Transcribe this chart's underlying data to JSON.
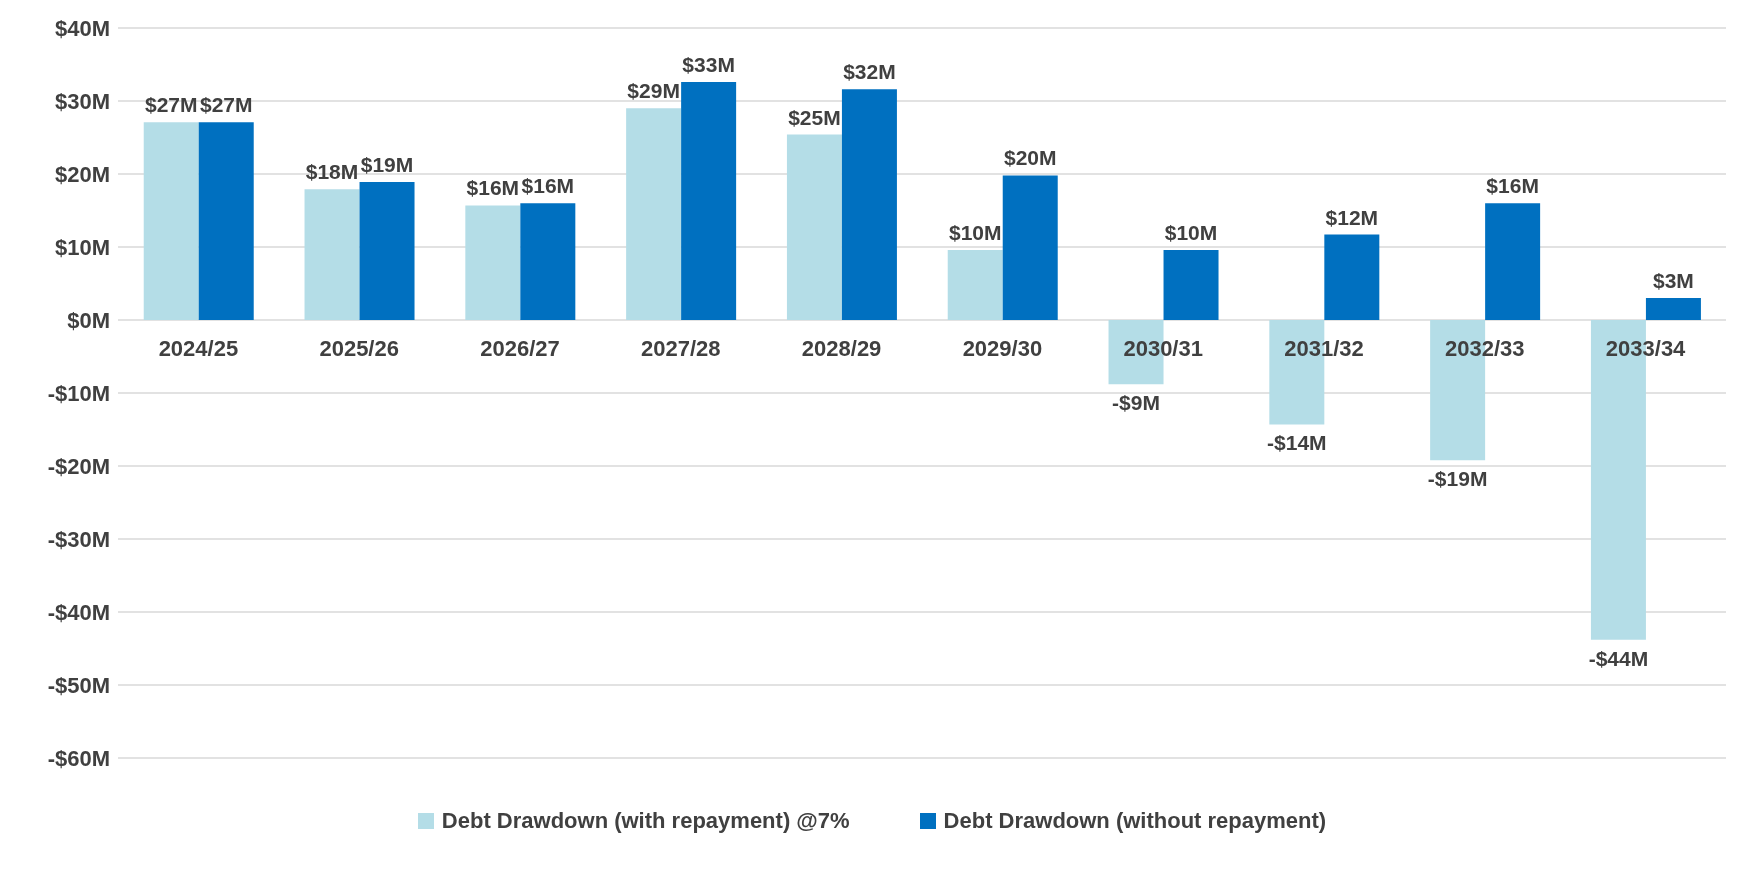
{
  "chart_data": {
    "type": "bar",
    "categories": [
      "2024/25",
      "2025/26",
      "2026/27",
      "2027/28",
      "2028/29",
      "2029/30",
      "2030/31",
      "2031/32",
      "2032/33",
      "2033/34"
    ],
    "series": [
      {
        "name": "Debt Drawdown (with repayment) @7%",
        "color": "#b4dde7",
        "values": [
          27.1,
          17.9,
          15.7,
          29,
          25.4,
          9.6,
          -8.8,
          -14.3,
          -19.2,
          -43.8
        ],
        "value_labels": [
          "$27M",
          "$18M",
          "$16M",
          "$29M",
          "$25M",
          "$10M",
          "-$9M",
          "-$14M",
          "-$19M",
          "-$44M"
        ]
      },
      {
        "name": "Debt Drawdown (without repayment)",
        "color": "#0070c0",
        "values": [
          27.1,
          18.9,
          16,
          32.6,
          31.6,
          19.8,
          9.6,
          11.7,
          16,
          3
        ],
        "value_labels": [
          "$27M",
          "$19M",
          "$16M",
          "$33M",
          "$32M",
          "$20M",
          "$10M",
          "$12M",
          "$16M",
          "$3M"
        ]
      }
    ],
    "ylim": [
      -60,
      40
    ],
    "yticks": [
      {
        "value": -60,
        "label": "-$60M"
      },
      {
        "value": -50,
        "label": "-$50M"
      },
      {
        "value": -40,
        "label": "-$40M"
      },
      {
        "value": -30,
        "label": "-$30M"
      },
      {
        "value": -20,
        "label": "-$20M"
      },
      {
        "value": -10,
        "label": "-$10M"
      },
      {
        "value": 0,
        "label": "$0M"
      },
      {
        "value": 10,
        "label": "$10M"
      },
      {
        "value": 20,
        "label": "$20M"
      },
      {
        "value": 30,
        "label": "$30M"
      },
      {
        "value": 40,
        "label": "$40M"
      }
    ],
    "grid": "y",
    "legend": "bottom"
  }
}
